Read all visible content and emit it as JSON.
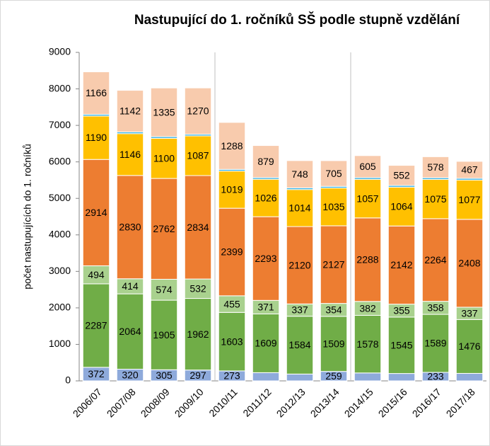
{
  "chart_data": {
    "type": "stacked_bar",
    "title": "Nastupující do 1. ročníků SŠ podle stupně vzdělání",
    "y_label": "počet nastupujících do 1. ročníků",
    "categories": [
      "2006/07",
      "2007/08",
      "2008/09",
      "2009/10",
      "2010/11",
      "2011/12",
      "2012/13",
      "2013/14",
      "2014/15",
      "2015/16",
      "2016/17",
      "2017/18"
    ],
    "series": [
      {
        "color": "#8eaadb",
        "values": [
          372,
          320,
          305,
          297,
          273,
          225,
          187,
          259,
          217,
          202,
          233,
          205
        ]
      },
      {
        "color": "#70ad47",
        "values": [
          2287,
          2064,
          1905,
          1962,
          1603,
          1609,
          1584,
          1509,
          1578,
          1545,
          1589,
          1476
        ]
      },
      {
        "color": "#a9d18e",
        "values": [
          494,
          414,
          574,
          532,
          455,
          371,
          337,
          354,
          382,
          355,
          358,
          337
        ]
      },
      {
        "color": "#ed7d31",
        "values": [
          2914,
          2830,
          2762,
          2834,
          2399,
          2293,
          2120,
          2127,
          2288,
          2142,
          2264,
          2408
        ]
      },
      {
        "color": "#ffc000",
        "values": [
          1190,
          1146,
          1100,
          1087,
          1019,
          1026,
          1014,
          1035,
          1057,
          1064,
          1075,
          1077
        ]
      },
      {
        "color": "#2eaee0",
        "values": [
          45,
          45,
          45,
          45,
          45,
          45,
          45,
          45,
          45,
          45,
          45,
          45
        ]
      },
      {
        "color": "#f8cbad",
        "values": [
          1166,
          1142,
          1335,
          1270,
          1288,
          879,
          748,
          705,
          605,
          552,
          578,
          467
        ]
      }
    ],
    "ylim": [
      0,
      9000
    ],
    "yticks": [
      0,
      1000,
      2000,
      3000,
      4000,
      5000,
      6000,
      7000,
      8000,
      9000
    ],
    "grid": false
  }
}
